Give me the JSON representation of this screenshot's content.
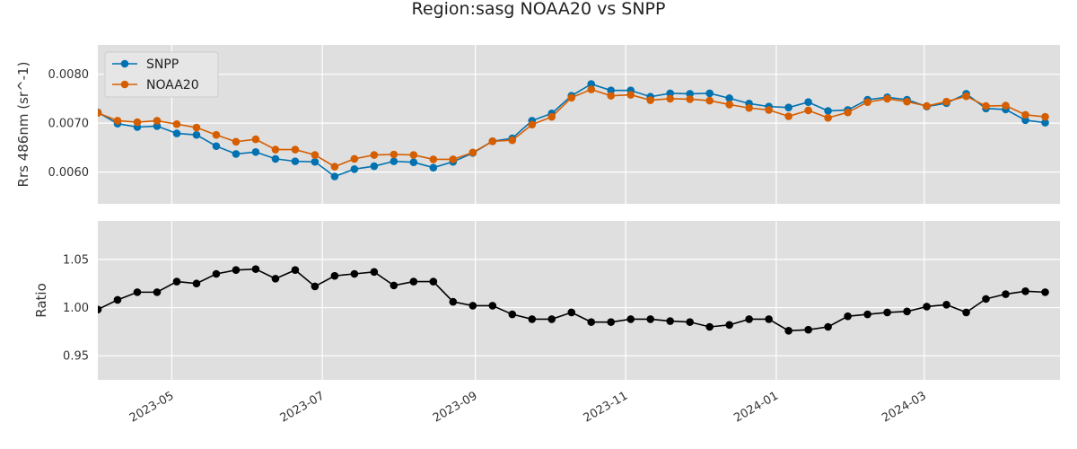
{
  "title": "Region:sasg NOAA20 vs SNPP",
  "x_dates": [
    "2023-04-01",
    "2023-04-09",
    "2023-04-17",
    "2023-04-25",
    "2023-05-03",
    "2023-05-11",
    "2023-05-19",
    "2023-05-27",
    "2023-06-04",
    "2023-06-12",
    "2023-06-20",
    "2023-06-28",
    "2023-07-06",
    "2023-07-14",
    "2023-07-22",
    "2023-07-30",
    "2023-08-07",
    "2023-08-15",
    "2023-08-23",
    "2023-08-31",
    "2023-09-08",
    "2023-09-16",
    "2023-09-24",
    "2023-10-02",
    "2023-10-10",
    "2023-10-18",
    "2023-10-26",
    "2023-11-03",
    "2023-11-11",
    "2023-11-19",
    "2023-11-27",
    "2023-12-05",
    "2023-12-13",
    "2023-12-21",
    "2023-12-29",
    "2024-01-06",
    "2024-01-14",
    "2024-01-22",
    "2024-01-30",
    "2024-02-07",
    "2024-02-15",
    "2024-02-23",
    "2024-03-02",
    "2024-03-10",
    "2024-03-18",
    "2024-03-26",
    "2024-04-03",
    "2024-04-11",
    "2024-04-19"
  ],
  "x_ticks": [
    {
      "date": "2023-05-01",
      "label": "2023-05"
    },
    {
      "date": "2023-07-01",
      "label": "2023-07"
    },
    {
      "date": "2023-09-01",
      "label": "2023-09"
    },
    {
      "date": "2023-11-01",
      "label": "2023-11"
    },
    {
      "date": "2024-01-01",
      "label": "2024-01"
    },
    {
      "date": "2024-03-01",
      "label": "2024-03"
    }
  ],
  "chart_data": [
    {
      "type": "line",
      "xlabel": "",
      "ylabel": "Rrs 486nm (sr^-1)",
      "ylim": [
        0.00535,
        0.0086
      ],
      "yticks": [
        {
          "value": 0.006,
          "label": "0.0060"
        },
        {
          "value": 0.007,
          "label": "0.0070"
        },
        {
          "value": 0.008,
          "label": "0.0080"
        }
      ],
      "grid": true,
      "legend": "top-left",
      "series": [
        {
          "name": "SNPP",
          "color": "#0072b2",
          "values": [
            0.00722,
            0.00699,
            0.00692,
            0.00694,
            0.00679,
            0.00676,
            0.00653,
            0.00637,
            0.00641,
            0.00627,
            0.00622,
            0.00621,
            0.00591,
            0.00606,
            0.00612,
            0.00622,
            0.0062,
            0.00609,
            0.00621,
            0.00639,
            0.00663,
            0.00669,
            0.00705,
            0.0072,
            0.00756,
            0.0078,
            0.00767,
            0.00767,
            0.00754,
            0.00761,
            0.0076,
            0.00761,
            0.00751,
            0.0074,
            0.00734,
            0.00732,
            0.00743,
            0.00725,
            0.00727,
            0.00748,
            0.00753,
            0.00748,
            0.00734,
            0.00741,
            0.0076,
            0.0073,
            0.00728,
            0.00706,
            0.00701
          ]
        },
        {
          "name": "NOAA20",
          "color": "#d55e00",
          "values": [
            0.00721,
            0.00705,
            0.00702,
            0.00705,
            0.00698,
            0.00691,
            0.00676,
            0.00662,
            0.00667,
            0.00646,
            0.00646,
            0.00635,
            0.00611,
            0.00627,
            0.00635,
            0.00636,
            0.00635,
            0.00626,
            0.00626,
            0.0064,
            0.00663,
            0.00665,
            0.00697,
            0.00713,
            0.00752,
            0.00769,
            0.00756,
            0.00758,
            0.00747,
            0.0075,
            0.00749,
            0.00746,
            0.00738,
            0.00731,
            0.00727,
            0.00714,
            0.00726,
            0.00711,
            0.00722,
            0.00743,
            0.0075,
            0.00744,
            0.00735,
            0.00744,
            0.00755,
            0.00735,
            0.00736,
            0.00717,
            0.00713
          ]
        }
      ]
    },
    {
      "type": "line",
      "xlabel": "",
      "ylabel": "Ratio",
      "ylim": [
        0.925,
        1.09
      ],
      "yticks": [
        {
          "value": 0.95,
          "label": "0.95"
        },
        {
          "value": 1.0,
          "label": "1.00"
        },
        {
          "value": 1.05,
          "label": "1.05"
        }
      ],
      "grid": true,
      "series": [
        {
          "color": "#000000",
          "values": [
            0.998,
            1.008,
            1.016,
            1.016,
            1.027,
            1.025,
            1.035,
            1.039,
            1.04,
            1.03,
            1.039,
            1.022,
            1.033,
            1.035,
            1.037,
            1.023,
            1.027,
            1.027,
            1.006,
            1.002,
            1.002,
            0.993,
            0.988,
            0.988,
            0.995,
            0.985,
            0.985,
            0.988,
            0.988,
            0.986,
            0.985,
            0.98,
            0.982,
            0.988,
            0.988,
            0.976,
            0.977,
            0.98,
            0.991,
            0.993,
            0.995,
            0.996,
            1.001,
            1.003,
            0.995,
            1.009,
            1.014,
            1.017,
            1.016
          ]
        }
      ]
    }
  ]
}
